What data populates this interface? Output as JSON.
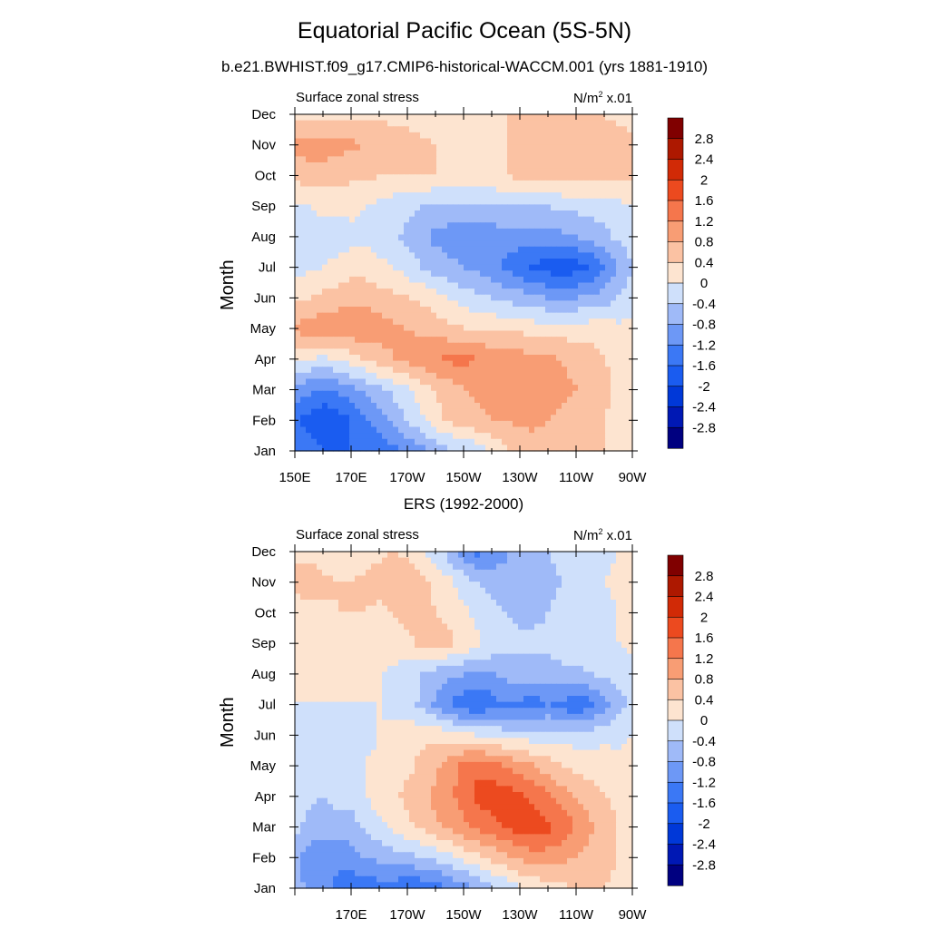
{
  "title": "Equatorial Pacific Ocean (5S-5N)",
  "subtitle": "b.e21.BWHIST.f09_g17.CMIP6-historical-WACCM.001 (yrs 1881-1910)",
  "colorbar": {
    "colors": [
      "#000080",
      "#0018b4",
      "#0038d8",
      "#1a5cf0",
      "#3b78f5",
      "#6d98f6",
      "#9fbaf8",
      "#cfe0fb",
      "#fde4d0",
      "#fbc2a3",
      "#f89d74",
      "#f5764c",
      "#ec4a1f",
      "#d12a06",
      "#ad1800",
      "#800000"
    ],
    "labels": [
      "-2.8",
      "-2.4",
      "-2",
      "-1.6",
      "-1.2",
      "-0.8",
      "-0.4",
      "0",
      "0.4",
      "0.8",
      "1.2",
      "1.6",
      "2",
      "2.4",
      "2.8"
    ]
  },
  "chart_data": [
    {
      "type": "heatmap",
      "panel_title": "",
      "left_label": "Surface zonal stress",
      "units_base": "N/m",
      "units_sup": "2",
      "units_suffix": " x.01",
      "ylabel": "Month",
      "x_ticklabels": [
        "150E",
        "170E",
        "170W",
        "150W",
        "130W",
        "110W",
        "90W"
      ],
      "y_ticklabels": [
        "Jan",
        "Feb",
        "Mar",
        "Apr",
        "May",
        "Jun",
        "Jul",
        "Aug",
        "Sep",
        "Oct",
        "Nov",
        "Dec"
      ],
      "xlim": [
        150,
        270
      ],
      "ylim": [
        1,
        12
      ],
      "longitudes": [
        150,
        155,
        160,
        165,
        170,
        175,
        180,
        185,
        190,
        195,
        200,
        205,
        210,
        215,
        220,
        225,
        230,
        235,
        240,
        245,
        250,
        255,
        260,
        265,
        270
      ],
      "months": [
        "Jan",
        "Feb",
        "Mar",
        "Apr",
        "May",
        "Jun",
        "Jul",
        "Aug",
        "Sep",
        "Oct",
        "Nov",
        "Dec"
      ],
      "values": [
        [
          -1.2,
          -1.4,
          -1.6,
          -1.6,
          -1.6,
          -1.5,
          -1.4,
          -1.3,
          -1.1,
          -0.9,
          -0.7,
          -0.5,
          -0.4,
          -0.2,
          0.1,
          0.3,
          0.5,
          0.6,
          0.7,
          0.6,
          0.5,
          0.5,
          0.4,
          0.3,
          0.2
        ],
        [
          -1.6,
          -1.8,
          -2.0,
          -1.9,
          -1.6,
          -1.3,
          -1.0,
          -0.7,
          -0.4,
          -0.1,
          0.3,
          0.5,
          0.6,
          0.7,
          0.8,
          0.8,
          0.9,
          0.9,
          0.8,
          0.7,
          0.6,
          0.5,
          0.4,
          0.3,
          0.2
        ],
        [
          -0.9,
          -1.1,
          -1.2,
          -1.1,
          -0.9,
          -0.7,
          -0.5,
          -0.3,
          -0.1,
          0.2,
          0.4,
          0.6,
          0.8,
          0.9,
          1.0,
          1.1,
          1.1,
          1.1,
          1.0,
          0.9,
          0.8,
          0.7,
          0.5,
          0.3,
          0.2
        ],
        [
          0.1,
          0.0,
          -0.1,
          0.0,
          0.2,
          0.4,
          0.6,
          0.8,
          0.9,
          1.1,
          1.2,
          1.3,
          1.3,
          1.2,
          1.1,
          1.0,
          1.0,
          0.9,
          0.9,
          0.8,
          0.7,
          0.6,
          0.4,
          0.3,
          0.2
        ],
        [
          0.9,
          1.0,
          1.1,
          1.1,
          1.1,
          1.1,
          1.0,
          0.9,
          0.8,
          0.7,
          0.6,
          0.5,
          0.4,
          0.4,
          0.3,
          0.3,
          0.3,
          0.2,
          0.2,
          0.2,
          0.2,
          0.2,
          0.2,
          0.1,
          0.1
        ],
        [
          0.3,
          0.4,
          0.5,
          0.6,
          0.7,
          0.7,
          0.6,
          0.5,
          0.4,
          0.3,
          0.2,
          0.0,
          -0.2,
          -0.3,
          -0.4,
          -0.5,
          -0.6,
          -0.7,
          -0.8,
          -0.8,
          -0.8,
          -0.7,
          -0.6,
          -0.4,
          -0.2
        ],
        [
          -0.1,
          -0.1,
          0.0,
          0.1,
          0.2,
          0.2,
          0.1,
          0.0,
          -0.2,
          -0.4,
          -0.6,
          -0.7,
          -0.8,
          -0.9,
          -1.1,
          -1.3,
          -1.5,
          -1.7,
          -1.8,
          -1.9,
          -1.8,
          -1.6,
          -1.2,
          -0.8,
          -0.4
        ],
        [
          -0.2,
          -0.2,
          -0.2,
          -0.2,
          -0.1,
          -0.1,
          -0.2,
          -0.3,
          -0.5,
          -0.7,
          -0.9,
          -1.0,
          -1.0,
          -1.0,
          -1.0,
          -1.0,
          -1.0,
          -1.0,
          -1.0,
          -0.9,
          -0.8,
          -0.7,
          -0.5,
          -0.3,
          -0.2
        ],
        [
          -0.1,
          0.0,
          0.1,
          0.1,
          0.1,
          0.0,
          -0.1,
          -0.2,
          -0.3,
          -0.4,
          -0.5,
          -0.5,
          -0.5,
          -0.5,
          -0.5,
          -0.4,
          -0.4,
          -0.4,
          -0.4,
          -0.3,
          -0.3,
          -0.2,
          -0.2,
          -0.1,
          0.0
        ],
        [
          0.5,
          0.6,
          0.6,
          0.6,
          0.5,
          0.5,
          0.4,
          0.4,
          0.4,
          0.4,
          0.4,
          0.4,
          0.4,
          0.4,
          0.4,
          0.4,
          0.5,
          0.5,
          0.5,
          0.6,
          0.6,
          0.6,
          0.6,
          0.5,
          0.5
        ],
        [
          0.9,
          1.0,
          1.0,
          0.9,
          0.9,
          0.8,
          0.7,
          0.6,
          0.5,
          0.5,
          0.4,
          0.3,
          0.3,
          0.3,
          0.3,
          0.4,
          0.5,
          0.6,
          0.6,
          0.6,
          0.7,
          0.7,
          0.6,
          0.6,
          0.5
        ],
        [
          0.2,
          0.2,
          0.2,
          0.2,
          0.3,
          0.3,
          0.3,
          0.3,
          0.3,
          0.2,
          0.2,
          0.2,
          0.3,
          0.3,
          0.3,
          0.4,
          0.5,
          0.5,
          0.5,
          0.5,
          0.5,
          0.4,
          0.4,
          0.3,
          0.2
        ]
      ]
    },
    {
      "type": "heatmap",
      "panel_title": "ERS (1992-2000)",
      "left_label": "Surface zonal stress",
      "units_base": "N/m",
      "units_sup": "2",
      "units_suffix": " x.01",
      "ylabel": "Month",
      "x_ticklabels": [
        "",
        "170E",
        "170W",
        "150W",
        "130W",
        "110W",
        "90W"
      ],
      "y_ticklabels": [
        "Jan",
        "Feb",
        "Mar",
        "Apr",
        "May",
        "Jun",
        "Jul",
        "Aug",
        "Sep",
        "Oct",
        "Nov",
        "Dec"
      ],
      "xlim": [
        150,
        270
      ],
      "ylim": [
        1,
        12
      ],
      "longitudes": [
        150,
        155,
        160,
        165,
        170,
        175,
        180,
        185,
        190,
        195,
        200,
        205,
        210,
        215,
        220,
        225,
        230,
        235,
        240,
        245,
        250,
        255,
        260,
        265,
        270
      ],
      "months": [
        "Jan",
        "Feb",
        "Mar",
        "Apr",
        "May",
        "Jun",
        "Jul",
        "Aug",
        "Sep",
        "Oct",
        "Nov",
        "Dec"
      ],
      "values": [
        [
          -0.6,
          -0.9,
          -1.1,
          -1.3,
          -1.4,
          -1.5,
          -1.4,
          -1.4,
          -1.6,
          -1.5,
          -1.4,
          -1.2,
          -1.0,
          -0.7,
          -0.5,
          -0.3,
          -0.1,
          0.1,
          0.2,
          0.3,
          0.4,
          0.4,
          0.4,
          0.3,
          0.2
        ],
        [
          -0.7,
          -1.0,
          -1.2,
          -1.1,
          -1.0,
          -0.8,
          -0.7,
          -0.6,
          -0.5,
          -0.4,
          -0.3,
          -0.1,
          0.1,
          0.3,
          0.5,
          0.7,
          0.9,
          1.0,
          1.0,
          0.9,
          0.8,
          0.6,
          0.5,
          0.4,
          0.3
        ],
        [
          -0.3,
          -0.5,
          -0.6,
          -0.5,
          -0.6,
          -0.3,
          -0.1,
          0.1,
          0.3,
          0.5,
          0.7,
          0.9,
          1.1,
          1.3,
          1.5,
          1.6,
          1.8,
          1.8,
          1.7,
          1.5,
          1.2,
          0.9,
          0.6,
          0.4,
          0.3
        ],
        [
          -0.2,
          -0.3,
          -0.4,
          -0.3,
          -0.2,
          0.0,
          0.2,
          0.3,
          0.5,
          0.7,
          0.9,
          1.1,
          1.4,
          1.7,
          1.8,
          1.8,
          1.7,
          1.5,
          1.3,
          1.0,
          0.8,
          0.6,
          0.4,
          0.3,
          0.2
        ],
        [
          0.0,
          -0.1,
          -0.1,
          -0.1,
          -0.1,
          0.0,
          0.1,
          0.2,
          0.3,
          0.5,
          0.7,
          1.0,
          1.3,
          1.5,
          1.4,
          1.2,
          1.0,
          0.8,
          0.6,
          0.4,
          0.3,
          0.2,
          0.2,
          0.1,
          0.1
        ],
        [
          -0.1,
          -0.2,
          -0.3,
          -0.3,
          -0.2,
          -0.1,
          0.0,
          0.1,
          0.2,
          0.3,
          0.3,
          0.2,
          0.1,
          0.0,
          -0.1,
          -0.2,
          -0.2,
          -0.2,
          -0.2,
          -0.2,
          -0.2,
          -0.2,
          -0.1,
          -0.1,
          0.0
        ],
        [
          0.0,
          0.0,
          0.0,
          0.0,
          0.0,
          0.0,
          0.0,
          -0.1,
          -0.2,
          -0.5,
          -0.9,
          -1.2,
          -1.5,
          -1.6,
          -1.4,
          -1.2,
          -1.3,
          -1.4,
          -1.2,
          -1.3,
          -1.6,
          -1.3,
          -1.0,
          -0.6,
          -0.3
        ],
        [
          0.2,
          0.1,
          0.1,
          0.1,
          0.1,
          0.1,
          0.0,
          -0.1,
          -0.2,
          -0.4,
          -0.6,
          -0.7,
          -0.8,
          -0.8,
          -0.8,
          -0.7,
          -0.6,
          -0.6,
          -0.6,
          -0.5,
          -0.5,
          -0.4,
          -0.3,
          -0.2,
          -0.1
        ],
        [
          0.1,
          0.2,
          0.2,
          0.3,
          0.3,
          0.3,
          0.2,
          0.2,
          0.3,
          0.5,
          0.6,
          0.5,
          0.3,
          0.1,
          -0.1,
          -0.2,
          -0.3,
          -0.3,
          -0.3,
          -0.2,
          -0.2,
          -0.1,
          -0.1,
          0.0,
          0.1
        ],
        [
          0.2,
          0.3,
          0.3,
          0.4,
          0.4,
          0.4,
          0.3,
          0.4,
          0.5,
          0.5,
          0.4,
          0.3,
          0.1,
          -0.1,
          -0.3,
          -0.4,
          -0.5,
          -0.5,
          -0.4,
          -0.3,
          -0.3,
          -0.2,
          -0.1,
          0.0,
          0.1
        ],
        [
          0.5,
          0.6,
          0.5,
          0.4,
          0.4,
          0.5,
          0.6,
          0.8,
          0.7,
          0.5,
          0.3,
          0.1,
          -0.2,
          -0.4,
          -0.5,
          -0.5,
          -0.6,
          -0.6,
          -0.5,
          -0.4,
          -0.2,
          -0.1,
          0.0,
          0.1,
          0.2
        ],
        [
          0.3,
          0.3,
          0.2,
          0.2,
          0.1,
          0.2,
          0.3,
          0.4,
          0.3,
          0.1,
          -0.2,
          -0.6,
          -1.0,
          -1.3,
          -1.2,
          -0.9,
          -0.6,
          -0.4,
          -0.4,
          -0.3,
          -0.3,
          -0.2,
          -0.1,
          0.0,
          0.1
        ]
      ]
    }
  ]
}
